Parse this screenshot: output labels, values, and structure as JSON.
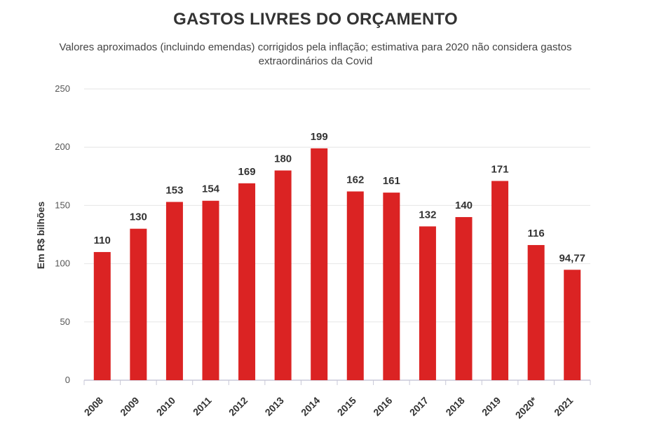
{
  "chart_data": {
    "type": "bar",
    "title": "GASTOS LIVRES DO ORÇAMENTO",
    "subtitle": "Valores aproximados (incluindo emendas) corrigidos pela inflação; estimativa para 2020 não considera gastos extraordinários da Covid",
    "xlabel": "",
    "ylabel": "Em R$ bilhões",
    "categories": [
      "2008",
      "2009",
      "2010",
      "2011",
      "2012",
      "2013",
      "2014",
      "2015",
      "2016",
      "2017",
      "2018",
      "2019",
      "2020*",
      "2021"
    ],
    "values": [
      110,
      130,
      153,
      154,
      169,
      180,
      199,
      162,
      161,
      132,
      140,
      171,
      116,
      94.77
    ],
    "data_labels": [
      "110",
      "130",
      "153",
      "154",
      "169",
      "180",
      "199",
      "162",
      "161",
      "132",
      "140",
      "171",
      "116",
      "94,77"
    ],
    "ylim": [
      0,
      250
    ],
    "yticks": [
      "0",
      "50",
      "100",
      "150",
      "200",
      "250"
    ],
    "grid": true,
    "bar_color": "#db2323"
  }
}
